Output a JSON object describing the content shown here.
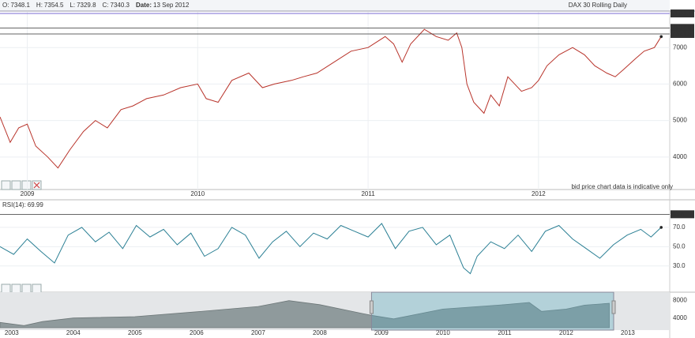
{
  "header": {
    "fields": [
      {
        "label": "O:",
        "value": 7348.1
      },
      {
        "label": "H:",
        "value": 7354.5
      },
      {
        "label": "L:",
        "value": 7329.8
      },
      {
        "label": "C:",
        "value": 7340.3
      },
      {
        "label": "Date:",
        "value": "13 Sep 2012"
      }
    ],
    "instrument": "DAX 30  Rolling Daily",
    "note": "bid price chart data is indicative only"
  },
  "chart_data": [
    {
      "type": "line",
      "color": "#b8332a",
      "x": [
        2008.84,
        2008.9,
        2008.95,
        2009.0,
        2009.05,
        2009.12,
        2009.18,
        2009.25,
        2009.33,
        2009.4,
        2009.47,
        2009.55,
        2009.62,
        2009.7,
        2009.8,
        2009.9,
        2010.0,
        2010.05,
        2010.12,
        2010.2,
        2010.3,
        2010.38,
        2010.45,
        2010.55,
        2010.62,
        2010.7,
        2010.8,
        2010.9,
        2011.0,
        2011.1,
        2011.15,
        2011.2,
        2011.25,
        2011.33,
        2011.4,
        2011.47,
        2011.52,
        2011.55,
        2011.58,
        2011.62,
        2011.68,
        2011.72,
        2011.77,
        2011.82,
        2011.9,
        2011.96,
        2012.0,
        2012.05,
        2012.12,
        2012.2,
        2012.27,
        2012.33,
        2012.4,
        2012.45,
        2012.5,
        2012.57,
        2012.62,
        2012.68,
        2012.72
      ],
      "series": [
        {
          "values": [
            5100,
            4400,
            4800,
            4900,
            4300,
            4000,
            3700,
            4200,
            4700,
            5000,
            4800,
            5300,
            5400,
            5600,
            5700,
            5900,
            6000,
            5600,
            5500,
            6100,
            6300,
            5900,
            6000,
            6100,
            6200,
            6300,
            6600,
            6900,
            7000,
            7300,
            7100,
            6600,
            7100,
            7500,
            7300,
            7200,
            7400,
            7000,
            6000,
            5500,
            5200,
            5700,
            5400,
            6200,
            5800,
            5900,
            6100,
            6500,
            6800,
            7000,
            6800,
            6500,
            6300,
            6200,
            6400,
            6700,
            6900,
            7000,
            7300
          ]
        }
      ],
      "xlim": [
        2008.84,
        2012.77
      ],
      "xticks": [
        2009,
        2010,
        2011,
        2012
      ],
      "ylim": [
        3109,
        7978
      ],
      "yticks": [
        4000,
        5000,
        6000,
        7000
      ],
      "levels": [
        7933.7,
        7537.8,
        7371.5
      ]
    },
    {
      "type": "line",
      "color": "#2a7f94",
      "x": [
        2008.84,
        2008.92,
        2009.0,
        2009.08,
        2009.16,
        2009.24,
        2009.32,
        2009.4,
        2009.48,
        2009.56,
        2009.64,
        2009.72,
        2009.8,
        2009.88,
        2009.96,
        2010.04,
        2010.12,
        2010.2,
        2010.28,
        2010.36,
        2010.44,
        2010.52,
        2010.6,
        2010.68,
        2010.76,
        2010.84,
        2010.92,
        2011.0,
        2011.08,
        2011.16,
        2011.24,
        2011.32,
        2011.4,
        2011.48,
        2011.56,
        2011.6,
        2011.64,
        2011.72,
        2011.8,
        2011.88,
        2011.96,
        2012.04,
        2012.12,
        2012.2,
        2012.28,
        2012.36,
        2012.44,
        2012.52,
        2012.6,
        2012.66,
        2012.72
      ],
      "series": [
        {
          "name": "RSI(14):",
          "last_value": 69.99,
          "values": [
            50,
            42,
            58,
            45,
            33,
            62,
            70,
            55,
            65,
            48,
            72,
            60,
            68,
            52,
            64,
            40,
            48,
            70,
            62,
            38,
            55,
            66,
            50,
            64,
            58,
            72,
            66,
            60,
            74,
            48,
            66,
            70,
            52,
            62,
            28,
            22,
            40,
            55,
            48,
            62,
            45,
            66,
            72,
            58,
            48,
            38,
            52,
            62,
            68,
            60,
            70
          ]
        }
      ],
      "xlim": [
        2008.84,
        2012.77
      ],
      "ylim": [
        15,
        97
      ],
      "yticks": [
        {
          "value": 30,
          "label": "30.0"
        },
        {
          "value": 50,
          "label": "50.0"
        },
        {
          "value": 70,
          "label": "70.0"
        }
      ],
      "levels": [
        83.6
      ]
    },
    {
      "type": "area",
      "color": "#8f9a9c",
      "x": [
        2002.81,
        2003.2,
        2003.5,
        2004.0,
        2005.0,
        2006.0,
        2007.0,
        2007.5,
        2008.0,
        2008.7,
        2008.84,
        2009.2,
        2010.0,
        2011.0,
        2011.4,
        2011.6,
        2012.0,
        2012.3,
        2012.7
      ],
      "series": [
        {
          "values": [
            3000,
            2300,
            3200,
            4000,
            4300,
            5400,
            6600,
            7900,
            7000,
            5000,
            4600,
            3800,
            6000,
            7000,
            7500,
            5500,
            6000,
            6900,
            7300
          ]
        }
      ],
      "xlim": [
        2002.81,
        2013.68
      ],
      "xticks": [
        2003,
        2004,
        2005,
        2006,
        2007,
        2008,
        2009,
        2010,
        2011,
        2012,
        2013
      ],
      "ylim": [
        1820,
        9270
      ],
      "yticks": [
        4000,
        8000
      ]
    }
  ]
}
